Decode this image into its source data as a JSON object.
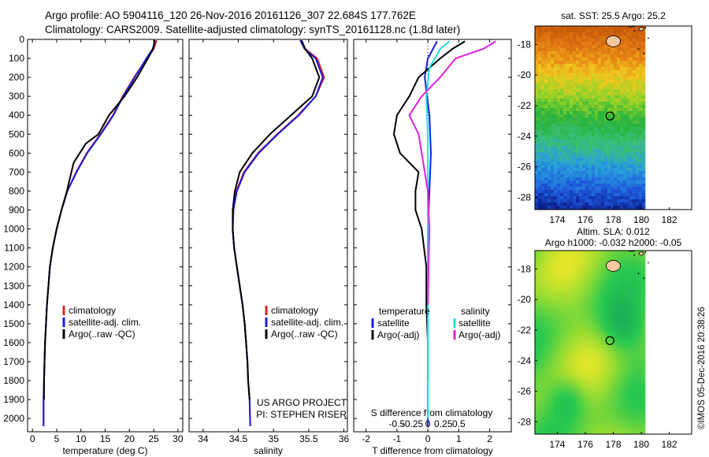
{
  "title_line1": "Argo profile: AO 5904116_120 26-Nov-2016 20161126_307 22.684S 177.762E",
  "title_line2": "Climatology: CARS2009. Satellite-adjusted climatology: synTS_20161128.nc (1.8d later)",
  "timestamp": "©IMOS 05-Dec-2016 20:38:26",
  "chart_data": [
    {
      "type": "line",
      "name": "temperature-panel",
      "xlabel": "temperature (deg C)",
      "ylabel": "",
      "xlim": [
        -1,
        31
      ],
      "ylim": [
        2070,
        0
      ],
      "xticks": [
        0,
        5,
        10,
        15,
        20,
        25,
        30
      ],
      "yticks": [
        0,
        100,
        200,
        300,
        400,
        500,
        600,
        700,
        800,
        900,
        1000,
        1100,
        1200,
        1300,
        1400,
        1500,
        1600,
        1700,
        1800,
        1900,
        2000
      ],
      "legend": [
        "climatology",
        "satellite-adj. clim.",
        "Argo(..raw -QC)"
      ],
      "legend_position": "lower-center",
      "series": [
        {
          "name": "climatology",
          "color": "#e02020",
          "x": [
            25.6,
            25.0,
            23.6,
            21.0,
            18.6,
            16.6,
            14.0,
            11.2,
            9.0,
            7.2,
            6.0,
            5.0,
            4.2,
            3.6,
            3.3,
            3.0,
            2.8,
            2.6,
            2.5,
            2.4,
            2.3,
            2.3
          ],
          "y": [
            5,
            50,
            100,
            200,
            300,
            400,
            500,
            600,
            700,
            800,
            900,
            1000,
            1100,
            1200,
            1300,
            1400,
            1500,
            1600,
            1700,
            1800,
            1900,
            2040
          ]
        },
        {
          "name": "satellite-adj. clim.",
          "color": "#1a1adf",
          "x": [
            25.3,
            24.8,
            23.5,
            21.1,
            18.7,
            16.7,
            14.1,
            11.3,
            9.1,
            7.2,
            6.0,
            5.0,
            4.2,
            3.6,
            3.3,
            3.0,
            2.8,
            2.6,
            2.5,
            2.4,
            2.3,
            2.3
          ],
          "y": [
            5,
            50,
            100,
            200,
            300,
            400,
            500,
            600,
            700,
            800,
            900,
            1000,
            1100,
            1200,
            1300,
            1400,
            1500,
            1600,
            1700,
            1800,
            1900,
            2040
          ]
        },
        {
          "name": "Argo(..raw -QC)",
          "color": "#000000",
          "x": [
            25.2,
            24.9,
            23.8,
            21.6,
            19.0,
            15.8,
            13.6,
            11.0,
            8.5,
            7.1,
            6.0,
            5.0,
            4.2,
            3.6,
            3.3,
            3.0,
            2.8,
            2.6,
            2.5,
            2.4,
            2.4
          ],
          "y": [
            5,
            50,
            100,
            200,
            300,
            400,
            500,
            550,
            650,
            800,
            900,
            1000,
            1100,
            1200,
            1300,
            1400,
            1500,
            1600,
            1700,
            1800,
            1900
          ]
        }
      ]
    },
    {
      "type": "line",
      "name": "salinity-panel",
      "xlabel": "salinity",
      "xlim": [
        33.8,
        36.05
      ],
      "ylim": [
        2070,
        0
      ],
      "xticks": [
        34,
        34.5,
        35,
        35.5,
        36
      ],
      "legend": [
        "climatology",
        "satellite-adj. clim.",
        "Argo(..raw -QC)"
      ],
      "legend_position": "lower-center",
      "annotation": [
        "US ARGO PROJECT",
        "PI: STEPHEN RISER"
      ],
      "series": [
        {
          "name": "climatology",
          "color": "#e02020",
          "x": [
            35.38,
            35.45,
            35.62,
            35.72,
            35.6,
            35.35,
            35.05,
            34.78,
            34.58,
            34.47,
            34.43,
            34.42,
            34.44,
            34.48,
            34.52,
            34.56,
            34.59,
            34.61,
            34.63,
            34.64,
            34.66,
            34.67
          ],
          "y": [
            5,
            50,
            100,
            200,
            300,
            400,
            500,
            600,
            700,
            800,
            900,
            1000,
            1100,
            1200,
            1300,
            1400,
            1500,
            1600,
            1700,
            1800,
            1900,
            2040
          ]
        },
        {
          "name": "satellite-adj. clim.",
          "color": "#1a1adf",
          "x": [
            35.38,
            35.44,
            35.6,
            35.7,
            35.6,
            35.36,
            35.06,
            34.79,
            34.59,
            34.48,
            34.43,
            34.42,
            34.44,
            34.48,
            34.52,
            34.56,
            34.59,
            34.61,
            34.63,
            34.64,
            34.66,
            34.67
          ],
          "y": [
            5,
            50,
            100,
            200,
            300,
            400,
            500,
            600,
            700,
            800,
            900,
            1000,
            1100,
            1200,
            1300,
            1400,
            1500,
            1600,
            1700,
            1800,
            1900,
            2040
          ]
        },
        {
          "name": "Argo(..raw -QC)",
          "color": "#000000",
          "x": [
            35.4,
            35.45,
            35.55,
            35.65,
            35.55,
            35.25,
            34.95,
            34.7,
            34.52,
            34.45,
            34.42,
            34.42,
            34.44,
            34.48,
            34.52,
            34.56,
            34.59,
            34.61,
            34.63,
            34.64,
            34.66
          ],
          "y": [
            5,
            50,
            100,
            200,
            300,
            400,
            500,
            600,
            700,
            800,
            900,
            1000,
            1100,
            1200,
            1300,
            1400,
            1500,
            1600,
            1700,
            1800,
            1900
          ]
        }
      ]
    },
    {
      "type": "line",
      "name": "difference-panel",
      "xlabel": "T difference from climatology",
      "xlabel_top": "S difference from climatology",
      "xlim": [
        -2.4,
        2.7
      ],
      "ylim": [
        2070,
        0
      ],
      "xticks_bottom": [
        -2,
        -1,
        0,
        1,
        2
      ],
      "xticks_top": [
        "-0.5",
        "-0.25",
        "0",
        "0.25",
        "0.5"
      ],
      "legend_temperature": [
        "temperature",
        "satellite",
        "Argo(-adj)"
      ],
      "legend_salinity": [
        "salinity",
        "satellite",
        "Argo(-adj)"
      ],
      "series": [
        {
          "name": "temperature satellite",
          "color": "#1a1adf",
          "x": [
            0.3,
            0.0,
            -0.1,
            0.05,
            0.1,
            0.05,
            0.0,
            0.0,
            0.0,
            0.0,
            0.0,
            0.0
          ],
          "y": [
            10,
            100,
            200,
            400,
            600,
            800,
            1000,
            1200,
            1400,
            1600,
            1800,
            2040
          ]
        },
        {
          "name": "temperature Argo(-adj)",
          "color": "#000000",
          "x": [
            1.2,
            0.8,
            0.4,
            -0.3,
            -0.6,
            -1.0,
            -1.1,
            -0.9,
            -0.3,
            -0.4,
            -0.4,
            -0.2,
            -0.05,
            -0.05,
            0.0,
            0.0
          ],
          "y": [
            10,
            50,
            100,
            200,
            300,
            400,
            500,
            600,
            700,
            800,
            900,
            1000,
            1200,
            1400,
            1600,
            1800
          ]
        },
        {
          "name": "salinity satellite",
          "color": "#20e0e0",
          "x": [
            0.7,
            0.4,
            0.05,
            -0.05,
            0.0,
            0.0,
            0.0,
            0.0,
            0.0,
            0.0
          ],
          "y": [
            10,
            50,
            150,
            300,
            500,
            800,
            1100,
            1400,
            1700,
            2000
          ]
        },
        {
          "name": "salinity Argo(-adj)",
          "color": "#e020e0",
          "x": [
            2.2,
            1.8,
            0.9,
            0.4,
            -0.2,
            -0.6,
            -0.3,
            -0.2,
            -0.1,
            0.0,
            0.05,
            0.0
          ],
          "y": [
            10,
            50,
            100,
            200,
            300,
            400,
            500,
            600,
            700,
            800,
            1000,
            1400
          ]
        }
      ]
    },
    {
      "type": "heatmap",
      "name": "sst-map",
      "title": "sat. SST: 25.5 Argo: 25.2",
      "xticks": [
        174,
        176,
        178,
        180,
        182
      ],
      "yticks": [
        -18,
        -20,
        -22,
        -24,
        -26,
        -28
      ],
      "xlim": [
        172.4,
        183.6
      ],
      "ylim": [
        -28.8,
        -16.8
      ],
      "marker": {
        "lon": 177.762,
        "lat": -22.684
      }
    },
    {
      "type": "heatmap",
      "name": "sla-map",
      "title": "Altim. SLA: 0.012",
      "subtitle": "Argo h1000: -0.032 h2000: -0.05",
      "xticks": [
        174,
        176,
        178,
        180,
        182
      ],
      "yticks": [
        -18,
        -20,
        -22,
        -24,
        -26,
        -28
      ],
      "xlim": [
        172.4,
        183.6
      ],
      "ylim": [
        -28.8,
        -16.8
      ],
      "marker": {
        "lon": 177.762,
        "lat": -22.684
      }
    }
  ]
}
